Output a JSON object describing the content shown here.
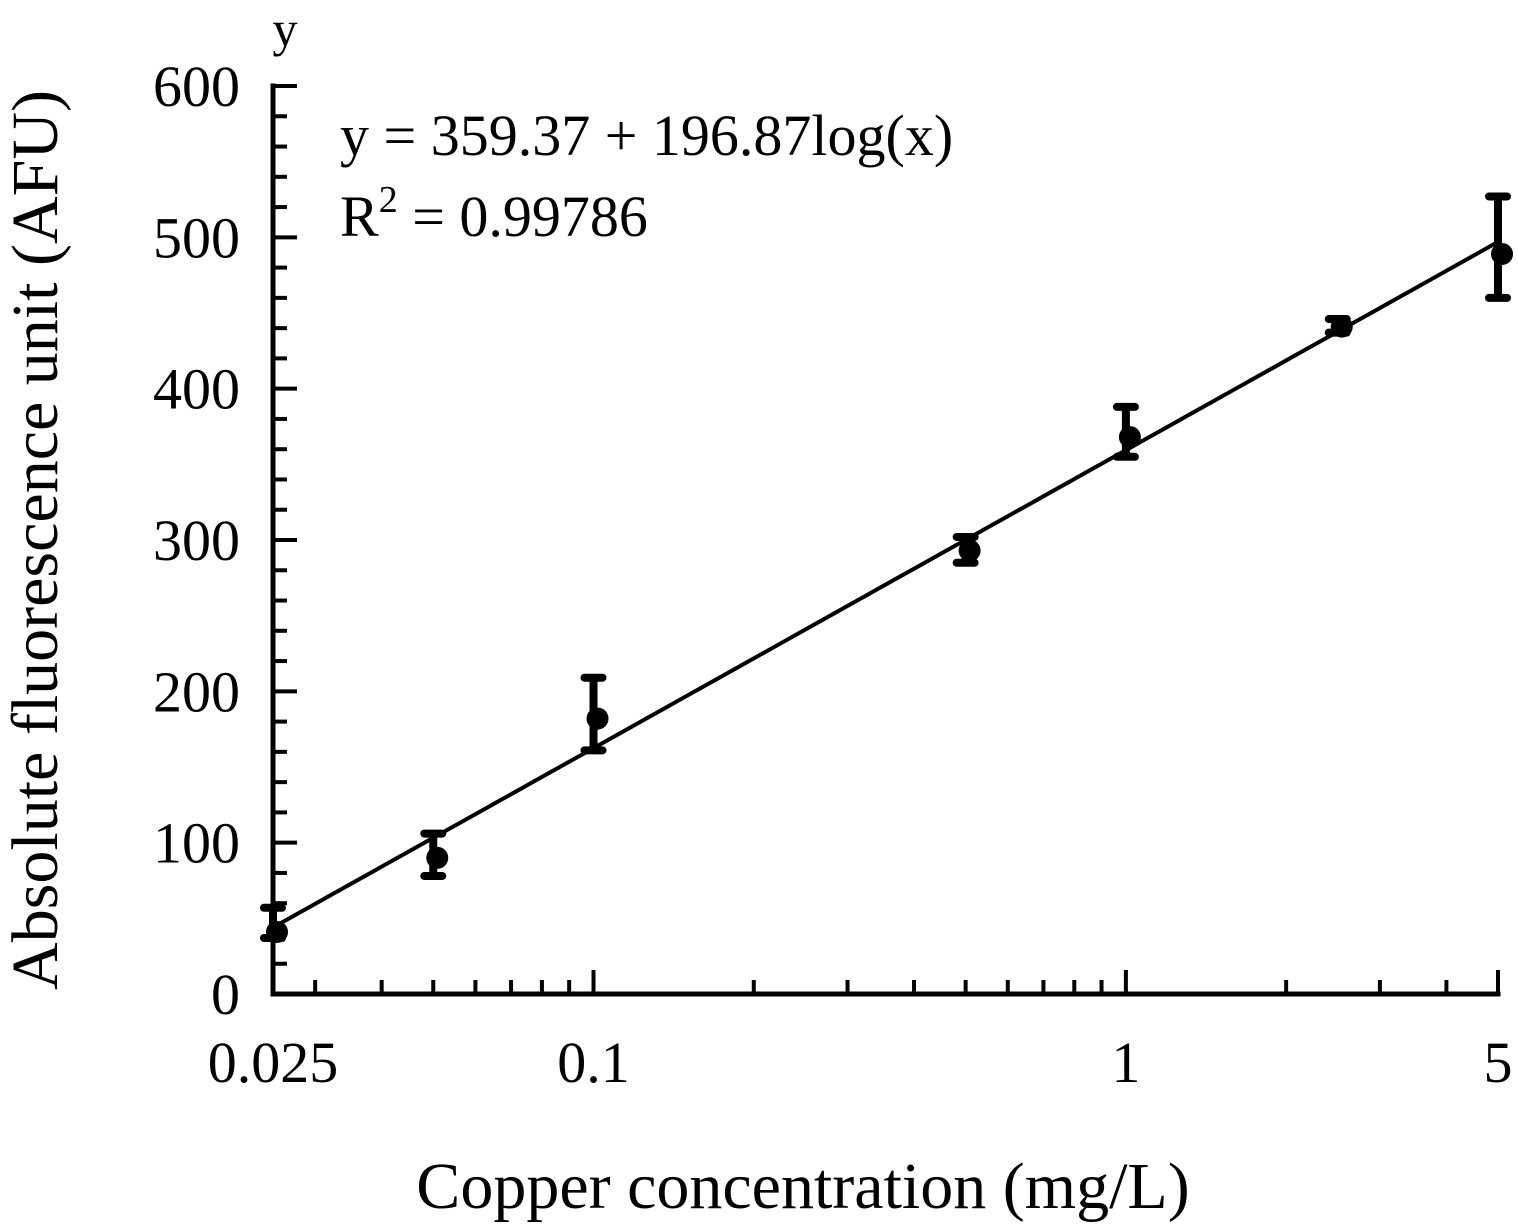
{
  "chart_data": {
    "type": "scatter",
    "title": "",
    "xlabel": "Copper concentration (mg/L)",
    "ylabel": "Absolute fluorescence unit (AFU)",
    "y_axis_name": "y",
    "x_scale": "log",
    "xlim": [
      0.025,
      5
    ],
    "ylim": [
      0,
      600
    ],
    "x_tick_labels": [
      {
        "value": 0.025,
        "label": "0.025"
      },
      {
        "value": 0.1,
        "label": "0.1"
      },
      {
        "value": 1,
        "label": "1"
      },
      {
        "value": 5,
        "label": "5"
      }
    ],
    "y_ticks": [
      0,
      100,
      200,
      300,
      400,
      500,
      600
    ],
    "y_minor_step": 20,
    "grid": false,
    "legend": "none",
    "points": [
      {
        "x": 0.025,
        "y": 41,
        "err_low": 37,
        "err_high": 57
      },
      {
        "x": 0.05,
        "y": 90,
        "err_low": 78,
        "err_high": 106
      },
      {
        "x": 0.1,
        "y": 182,
        "err_low": 161,
        "err_high": 209
      },
      {
        "x": 0.5,
        "y": 293,
        "err_low": 285,
        "err_high": 302
      },
      {
        "x": 1,
        "y": 368,
        "err_low": 355,
        "err_high": 388
      },
      {
        "x": 2.5,
        "y": 441,
        "err_low": 437,
        "err_high": 446
      },
      {
        "x": 5,
        "y": 489,
        "err_low": 460,
        "err_high": 527
      }
    ],
    "fit": {
      "intercept": 359.37,
      "slope": 196.87,
      "form": "log10"
    },
    "annotations": {
      "equation": "y = 359.37 + 196.87log(x)",
      "r2_prefix": "R",
      "r2_sup": "2",
      "r2_suffix": " = 0.99786"
    },
    "color": "#000000"
  }
}
